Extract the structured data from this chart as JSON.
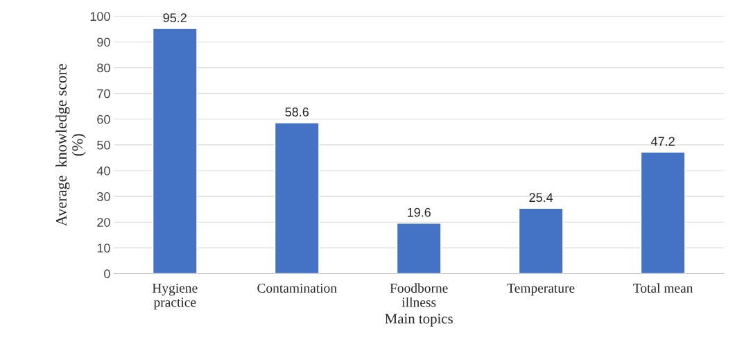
{
  "chart_data": {
    "type": "bar",
    "xlabel": "Main topics",
    "ylabel": "Average  knowledge score\n(%)",
    "categories": [
      "Hygiene\npractice",
      "Contamination",
      "Foodborne\nillness",
      "Temperature",
      "Total mean"
    ],
    "values": [
      95.2,
      58.6,
      19.6,
      25.4,
      47.2
    ],
    "color": "#4472c4",
    "ylim": [
      0,
      100
    ],
    "yticks": [
      0,
      10,
      20,
      30,
      40,
      50,
      60,
      70,
      80,
      90,
      100
    ],
    "grid": "y",
    "data_labels": true
  }
}
